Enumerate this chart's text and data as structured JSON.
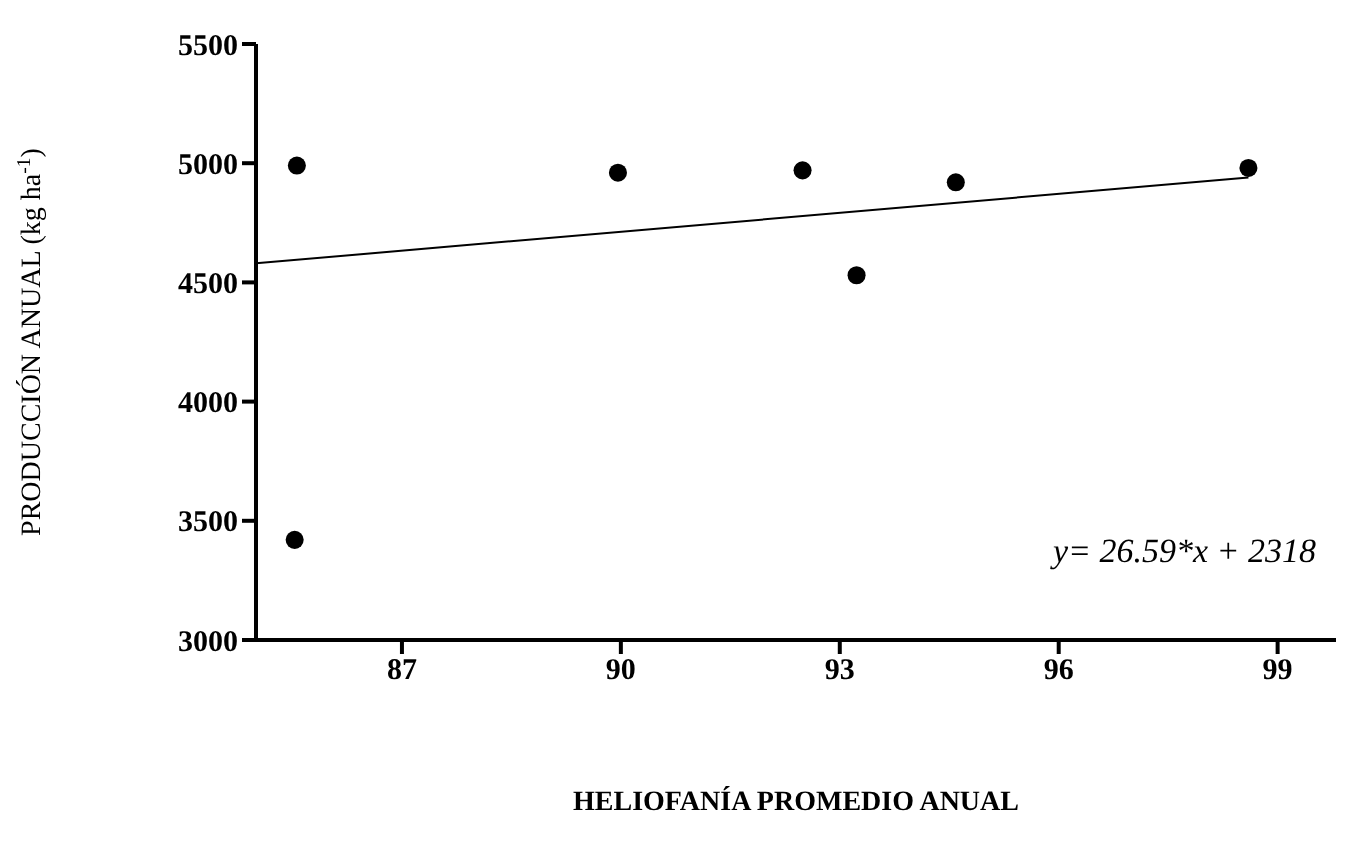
{
  "chart_data": {
    "type": "scatter",
    "xlabel": "HELIOFANÍA PROMEDIO ANUAL",
    "ylabel": "PRODUCCIÓN ANUAL (kg ha$^{-1}$)",
    "series": [
      {
        "color": "#000000",
        "marker": "circle",
        "x": [
          85.56,
          85.53,
          89.96,
          92.49,
          93.23,
          94.59,
          98.6
        ],
        "values": [
          4990,
          3420,
          4960,
          4970,
          4530,
          4920,
          4980
        ]
      },
      {
        "type": "line",
        "color": "#000000",
        "marker": "none",
        "x": [
          85,
          98.6
        ],
        "values": [
          4580,
          4940
        ]
      }
    ],
    "xlim": [
      85,
      99.8
    ],
    "xticks": [
      87,
      90,
      93,
      96,
      99
    ],
    "ylim": [
      3000,
      5500
    ],
    "yticks": [
      3000,
      3500,
      4000,
      4500,
      5000,
      5500
    ],
    "line_style": "solid",
    "grid": false,
    "annotations": [
      "y= 26.59*x + 2318"
    ]
  }
}
